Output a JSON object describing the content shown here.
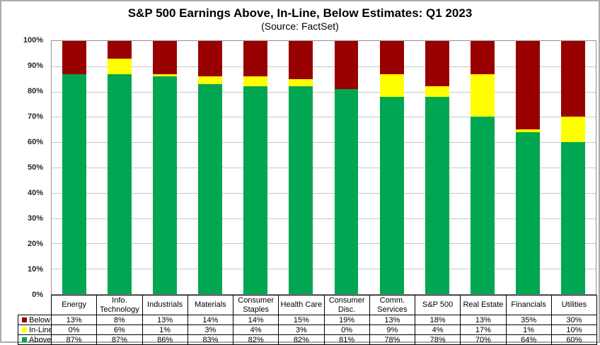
{
  "title": "S&P 500 Earnings Above, In-Line, Below Estimates: Q1 2023",
  "subtitle": "(Source: FactSet)",
  "chart_data": {
    "type": "bar",
    "stacked": true,
    "title": "S&P 500 Earnings Above, In-Line, Below Estimates: Q1 2023",
    "subtitle": "(Source: FactSet)",
    "categories": [
      "Energy",
      "Info. Technology",
      "Industrials",
      "Materials",
      "Consumer Staples",
      "Health Care",
      "Consumer Disc.",
      "Comm. Services",
      "S&P 500",
      "Real Estate",
      "Financials",
      "Utilities"
    ],
    "series": [
      {
        "name": "Below",
        "color": "#990000",
        "values": [
          13,
          8,
          13,
          14,
          14,
          15,
          19,
          13,
          18,
          13,
          35,
          30
        ]
      },
      {
        "name": "In-Line",
        "color": "#FFFF00",
        "values": [
          0,
          6,
          1,
          3,
          4,
          3,
          0,
          9,
          4,
          17,
          1,
          10
        ]
      },
      {
        "name": "Above",
        "color": "#00A651",
        "values": [
          87,
          87,
          86,
          83,
          82,
          82,
          81,
          78,
          78,
          70,
          64,
          60
        ]
      }
    ],
    "value_suffix": "%",
    "y_ticks": [
      "100%",
      "90%",
      "80%",
      "70%",
      "60%",
      "50%",
      "40%",
      "30%",
      "20%",
      "10%",
      "0%"
    ],
    "ylim": [
      0,
      100
    ],
    "grid": true,
    "legend_position": "table-left",
    "table_shown": true
  }
}
